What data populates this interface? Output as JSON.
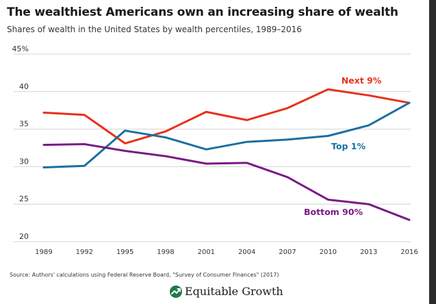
{
  "header": {
    "title": "The wealthiest Americans own an increasing share of wealth",
    "subtitle": "Shares of wealth in the United States by wealth percentiles, 1989–2016"
  },
  "footer": {
    "source": "Source: Authors' calculations using Federal Reserve Board, \"Survey of Consumer Finances\" (2017)",
    "brand": "Equitable Growth",
    "brand_icon": "growth-leaf-icon",
    "brand_color": "#1e7a4c"
  },
  "chart_data": {
    "type": "line",
    "title": "The wealthiest Americans own an increasing share of wealth",
    "subtitle": "Shares of wealth in the United States by wealth percentiles, 1989–2016",
    "xlabel": "",
    "ylabel": "",
    "x": [
      "1989",
      "1992",
      "1995",
      "1998",
      "2001",
      "2004",
      "2007",
      "2010",
      "2013",
      "2016"
    ],
    "ylim": [
      20,
      45
    ],
    "yticks": [
      "20",
      "25",
      "30",
      "35",
      "40",
      "45%"
    ],
    "grid": true,
    "legend": "inline labels",
    "series": [
      {
        "name": "Next 9%",
        "color": "#e8311a",
        "values": [
          37.2,
          36.9,
          33.1,
          34.7,
          37.3,
          36.2,
          37.8,
          40.3,
          39.5,
          38.5
        ]
      },
      {
        "name": "Top 1%",
        "color": "#1a6fa0",
        "values": [
          29.9,
          30.1,
          34.8,
          33.9,
          32.3,
          33.3,
          33.6,
          34.1,
          35.5,
          38.5
        ]
      },
      {
        "name": "Bottom 90%",
        "color": "#7a1a86",
        "values": [
          32.9,
          33.0,
          32.1,
          31.4,
          30.4,
          30.5,
          28.6,
          25.6,
          25.0,
          22.9
        ]
      }
    ]
  }
}
